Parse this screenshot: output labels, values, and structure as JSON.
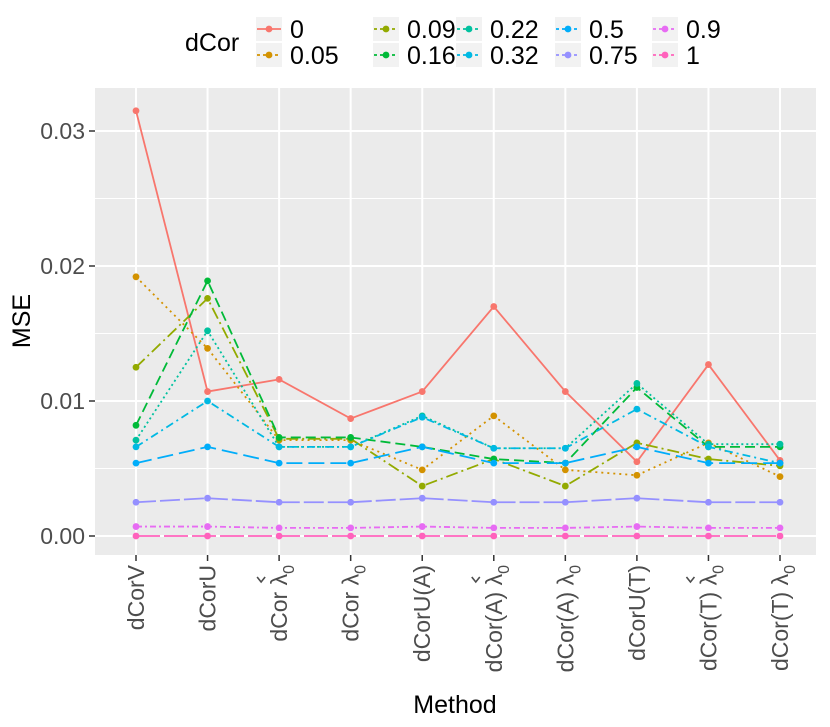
{
  "chart_data": {
    "type": "line",
    "title": "",
    "xlabel": "Method",
    "ylabel": "MSE",
    "ylim": [
      -0.0016,
      0.0333
    ],
    "yticks": [
      0.0,
      0.01,
      0.02,
      0.03
    ],
    "ytick_labels": [
      "0.00",
      "0.01",
      "0.02",
      "0.03"
    ],
    "legend_title": "dCor",
    "legend_position": "top",
    "grid": true,
    "categories": [
      {
        "main": "dCorV",
        "sym": "",
        "sub": "",
        "hat": false
      },
      {
        "main": "dCorU",
        "sym": "",
        "sub": "",
        "hat": false
      },
      {
        "main": "dCor ",
        "sym": "λ",
        "sub": "0",
        "hat": true
      },
      {
        "main": "dCor ",
        "sym": "λ",
        "sub": "0",
        "hat": false
      },
      {
        "main": "dCorU(A)",
        "sym": "",
        "sub": "",
        "hat": false
      },
      {
        "main": "dCor(A) ",
        "sym": "λ",
        "sub": "0",
        "hat": true
      },
      {
        "main": "dCor(A) ",
        "sym": "λ",
        "sub": "0",
        "hat": false
      },
      {
        "main": "dCorU(T)",
        "sym": "",
        "sub": "",
        "hat": false
      },
      {
        "main": "dCor(T) ",
        "sym": "λ",
        "sub": "0",
        "hat": true
      },
      {
        "main": "dCor(T) ",
        "sym": "λ",
        "sub": "0",
        "hat": false
      }
    ],
    "series": [
      {
        "name": "0",
        "color": "#F8766D",
        "dash": "",
        "values": [
          0.0315,
          0.0107,
          0.0116,
          0.0087,
          0.0107,
          0.017,
          0.0107,
          0.0055,
          0.0127,
          0.0056
        ]
      },
      {
        "name": "0.05",
        "color": "#D39200",
        "dash": "2,4",
        "values": [
          0.0192,
          0.0139,
          0.0071,
          0.0071,
          0.0049,
          0.0089,
          0.0049,
          0.0045,
          0.0069,
          0.0044
        ]
      },
      {
        "name": "0.09",
        "color": "#93AA00",
        "dash": "12,4,2,4",
        "values": [
          0.0125,
          0.0176,
          0.0072,
          0.0072,
          0.0037,
          0.0057,
          0.0037,
          0.0069,
          0.0057,
          0.0052
        ]
      },
      {
        "name": "0.16",
        "color": "#00BA38",
        "dash": "10,5",
        "values": [
          0.0082,
          0.0189,
          0.0073,
          0.0073,
          0.0066,
          0.0057,
          0.0054,
          0.011,
          0.0066,
          0.0066
        ]
      },
      {
        "name": "0.22",
        "color": "#00C19F",
        "dash": "2,3",
        "values": [
          0.0071,
          0.0152,
          0.0066,
          0.0066,
          0.0089,
          0.0065,
          0.0065,
          0.0113,
          0.0068,
          0.0068
        ]
      },
      {
        "name": "0.32",
        "color": "#00B9E3",
        "dash": "8,4,2,4",
        "values": [
          0.0066,
          0.01,
          0.0066,
          0.0066,
          0.0088,
          0.0065,
          0.0065,
          0.0094,
          0.0066,
          0.0054
        ]
      },
      {
        "name": "0.5",
        "color": "#00ADFA",
        "dash": "16,6",
        "values": [
          0.0054,
          0.0066,
          0.0054,
          0.0054,
          0.0066,
          0.0054,
          0.0054,
          0.0066,
          0.0054,
          0.0054
        ]
      },
      {
        "name": "0.75",
        "color": "#9590FF",
        "dash": "20,4",
        "values": [
          0.0025,
          0.0028,
          0.0025,
          0.0025,
          0.0028,
          0.0025,
          0.0025,
          0.0028,
          0.0025,
          0.0025
        ]
      },
      {
        "name": "0.9",
        "color": "#E76BF3",
        "dash": "6,3,2,3",
        "values": [
          0.0007,
          0.0007,
          0.0006,
          0.0006,
          0.0007,
          0.0006,
          0.0006,
          0.0007,
          0.0006,
          0.0006
        ]
      },
      {
        "name": "1",
        "color": "#FF62BC",
        "dash": "24,4",
        "values": [
          0.0,
          0.0,
          0.0,
          0.0,
          0.0,
          0.0,
          0.0,
          0.0,
          0.0,
          0.0
        ]
      }
    ]
  }
}
